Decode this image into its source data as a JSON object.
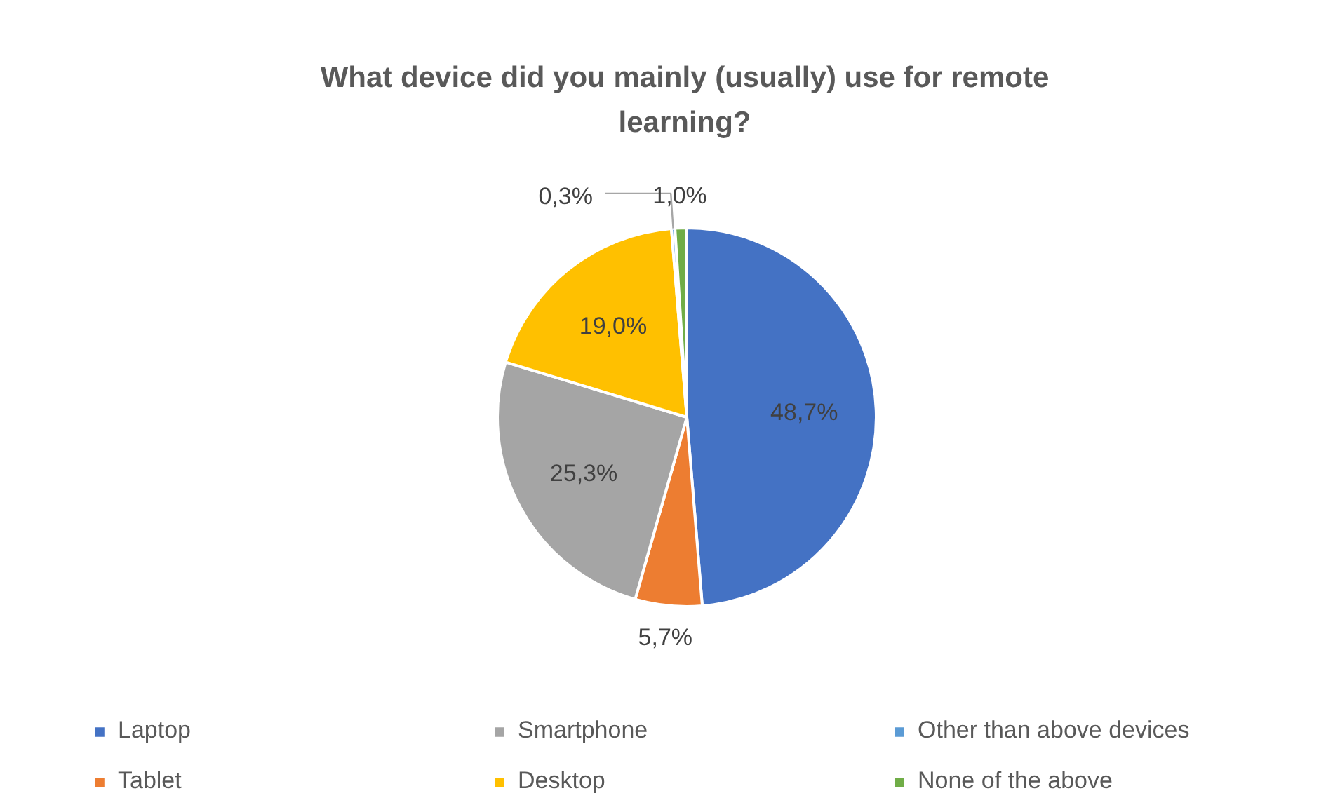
{
  "chart_data": {
    "type": "pie",
    "title": "What device did you mainly (usually) use for remote learning?",
    "categories": [
      "Laptop",
      "Tablet",
      "Smartphone",
      "Desktop",
      "Other than above devices",
      "None of the above"
    ],
    "values": [
      48.7,
      5.7,
      25.3,
      19.0,
      0.3,
      1.0
    ],
    "colors": [
      "#4472c4",
      "#ed7d31",
      "#a5a5a5",
      "#ffc000",
      "#5b9bd5",
      "#70ad47"
    ],
    "value_labels": [
      "48,7%",
      "5,7%",
      "25,3%",
      "19,0%",
      "0,3%",
      "1,0%"
    ],
    "legend": "bottom"
  }
}
